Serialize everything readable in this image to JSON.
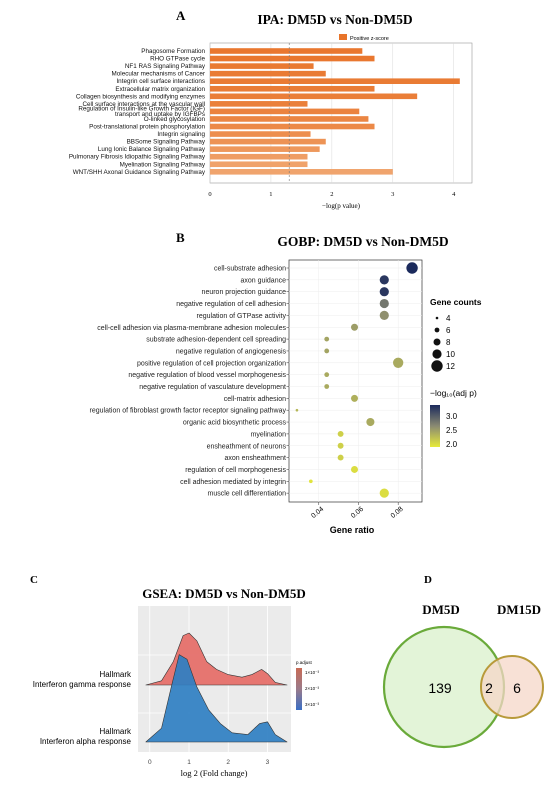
{
  "panels": {
    "a": {
      "letter": "A",
      "title": "IPA: DM5D vs Non-DM5D",
      "legend_label": "Positive z-score",
      "xlabel": "−log(p value)",
      "xticks": [
        "0",
        "1",
        "2",
        "3",
        "4"
      ]
    },
    "b": {
      "letter": "B",
      "title": "GOBP: DM5D vs Non-DM5D",
      "xlabel": "Gene ratio",
      "xticks": [
        "0.04",
        "0.06",
        "0.08"
      ],
      "size_legend_title": "Gene counts",
      "size_legend_values": [
        "4",
        "6",
        "8",
        "10",
        "12"
      ],
      "color_legend_title": "−log₁₀(adj p)",
      "color_legend_ticks": [
        "3.0",
        "2.5",
        "2.0"
      ]
    },
    "c": {
      "letter": "C",
      "title": "GSEA: DM5D vs Non-DM5D",
      "xlabel": "log 2 (Fold change)",
      "xticks": [
        "0",
        "1",
        "2",
        "3"
      ],
      "row_labels": [
        [
          "Hallmark",
          "Interferon gamma response"
        ],
        [
          "Hallmark",
          "Interferon alpha response"
        ]
      ],
      "legend_title": "p.adjust",
      "legend_ticks": [
        "1×10⁻³",
        "2×10⁻³",
        "3×10⁻³"
      ]
    },
    "d": {
      "letter": "D",
      "set_left_label": "DM5D",
      "set_right_label": "DM15D",
      "left_only": "139",
      "overlap": "2",
      "right_only": "6"
    }
  },
  "colors": {
    "ipa_bar_dark": "#e8742a",
    "ipa_bar_light": "#f4b98a",
    "gobp_high": "#1b2a5c",
    "gobp_mid": "#8a8a72",
    "gobp_low": "#e7ea3a",
    "gsea_red": "#e56b66",
    "gsea_blue": "#2f7fc2",
    "venn_left_fill": "#e3f4d8",
    "venn_left_stroke": "#6aaa3a",
    "venn_right_fill": "#f6d7c8",
    "venn_right_stroke": "#b89a3a"
  },
  "chart_data": [
    {
      "type": "bar",
      "title": "IPA: DM5D vs Non-DM5D",
      "xlabel": "−log(p value)",
      "orientation": "horizontal",
      "xlim": [
        0,
        4.3
      ],
      "threshold_line": 1.3,
      "categories": [
        "Phagosome Formation",
        "RHO GTPase cycle",
        "NF1 RAS Signaling Pathway",
        "Molecular mechanisms of Cancer",
        "Integrin cell surface interactions",
        "Extracellular matrix organization",
        "Collagen biosynthesis and modifying enzymes",
        "Cell surface interactions at the vascular wall",
        "Regulation of Insulin-like Growth Factor (IGF) transport and uptake by IGFBPs",
        "O-linked glycosylation",
        "Post-translational protein phosphorylation",
        "Integrin signaling",
        "BBSome Signaling Pathway",
        "Lung Ionic Balance Signaling Pathway",
        "Pulmonary Fibrosis Idiopathic Signaling Pathway",
        "Myelination Signaling Pathway",
        "WNT/SHH Axonal Guidance Signaling Pathway"
      ],
      "category_lines": [
        [
          "Phagosome Formation"
        ],
        [
          "RHO GTPase cycle"
        ],
        [
          "NF1 RAS Signaling Pathway"
        ],
        [
          "Molecular mechanisms of Cancer"
        ],
        [
          "Integrin cell surface interactions"
        ],
        [
          "Extracellular matrix organization"
        ],
        [
          "Collagen biosynthesis and modifying enzymes"
        ],
        [
          "Cell surface interactions at the vascular wall"
        ],
        [
          "Regulation of Insulin-like Growth Factor (IGF)",
          "transport and uptake by IGFBPs"
        ],
        [
          "O-linked glycosylation"
        ],
        [
          "Post-translational protein phosphorylation"
        ],
        [
          "Integrin signaling"
        ],
        [
          "BBSome Signaling Pathway"
        ],
        [
          "Lung Ionic Balance Signaling Pathway"
        ],
        [
          "Pulmonary Fibrosis Idiopathic Signaling Pathway"
        ],
        [
          "Myelination Signaling Pathway"
        ],
        [
          "WNT/SHH Axonal Guidance Signaling Pathway"
        ]
      ],
      "values": [
        2.5,
        2.7,
        1.7,
        1.9,
        4.1,
        2.7,
        3.4,
        1.6,
        2.45,
        2.6,
        2.7,
        1.65,
        1.9,
        1.8,
        1.6,
        1.6,
        3.0
      ],
      "z_shade": [
        0.95,
        0.95,
        0.92,
        0.9,
        0.9,
        0.88,
        0.85,
        0.82,
        0.78,
        0.74,
        0.7,
        0.62,
        0.55,
        0.48,
        0.4,
        0.33,
        0.3
      ],
      "legend": [
        "Positive z-score"
      ]
    },
    {
      "type": "scatter",
      "title": "GOBP: DM5D vs Non-DM5D",
      "xlabel": "Gene ratio",
      "xlim": [
        0.025,
        0.092
      ],
      "terms": [
        "cell-substrate adhesion",
        "axon guidance",
        "neuron projection guidance",
        "negative regulation of cell adhesion",
        "regulation of GTPase activity",
        "cell-cell adhesion via plasma-membrane adhesion molecules",
        "substrate adhesion-dependent cell spreading",
        "negative regulation of angiogenesis",
        "positive regulation of cell projection organization",
        "negative regulation of blood vessel morphogenesis",
        "negative regulation of vasculature development",
        "cell-matrix adhesion",
        "regulation of fibroblast growth factor receptor signaling pathway",
        "organic acid biosynthetic process",
        "myelination",
        "ensheathment of neurons",
        "axon ensheathment",
        "regulation of cell morphogenesis",
        "cell adhesion mediated by integrin",
        "muscle cell differentiation"
      ],
      "gene_ratio": [
        0.087,
        0.073,
        0.073,
        0.073,
        0.073,
        0.058,
        0.044,
        0.044,
        0.08,
        0.044,
        0.044,
        0.058,
        0.029,
        0.066,
        0.051,
        0.051,
        0.051,
        0.058,
        0.036,
        0.073
      ],
      "gene_count": [
        12,
        10,
        10,
        10,
        10,
        8,
        6,
        6,
        11,
        6,
        6,
        8,
        4,
        9,
        7,
        7,
        7,
        8,
        5,
        10
      ],
      "neg_log10_adj_p": [
        3.4,
        3.3,
        3.3,
        2.8,
        2.6,
        2.5,
        2.45,
        2.45,
        2.4,
        2.4,
        2.4,
        2.35,
        2.3,
        2.4,
        2.1,
        2.1,
        2.1,
        2.0,
        1.95,
        2.0
      ],
      "size_legend": [
        4,
        6,
        8,
        10,
        12
      ],
      "color_range": [
        1.9,
        3.4
      ]
    },
    {
      "type": "area",
      "title": "GSEA: DM5D vs Non-DM5D",
      "xlabel": "log 2 (Fold change)",
      "xlim": [
        -0.3,
        3.6
      ],
      "series": [
        {
          "name": "Hallmark Interferon gamma response",
          "x": [
            -0.1,
            0.3,
            0.6,
            0.85,
            1.0,
            1.2,
            1.45,
            1.7,
            2.0,
            2.35,
            2.6,
            2.85,
            3.0,
            3.2,
            3.5
          ],
          "density": [
            0.0,
            0.08,
            0.45,
            0.95,
            1.0,
            0.85,
            0.45,
            0.3,
            0.2,
            0.15,
            0.2,
            0.3,
            0.22,
            0.05,
            0.0
          ]
        },
        {
          "name": "Hallmark Interferon alpha response",
          "x": [
            -0.1,
            0.3,
            0.55,
            0.75,
            0.95,
            1.2,
            1.5,
            1.8,
            2.1,
            2.5,
            2.8,
            3.0,
            3.2,
            3.5
          ],
          "density": [
            0.0,
            0.15,
            0.6,
            0.95,
            0.9,
            0.6,
            0.35,
            0.2,
            0.1,
            0.08,
            0.2,
            0.22,
            0.08,
            0.0
          ]
        }
      ],
      "legend_title": "p.adjust"
    }
  ]
}
